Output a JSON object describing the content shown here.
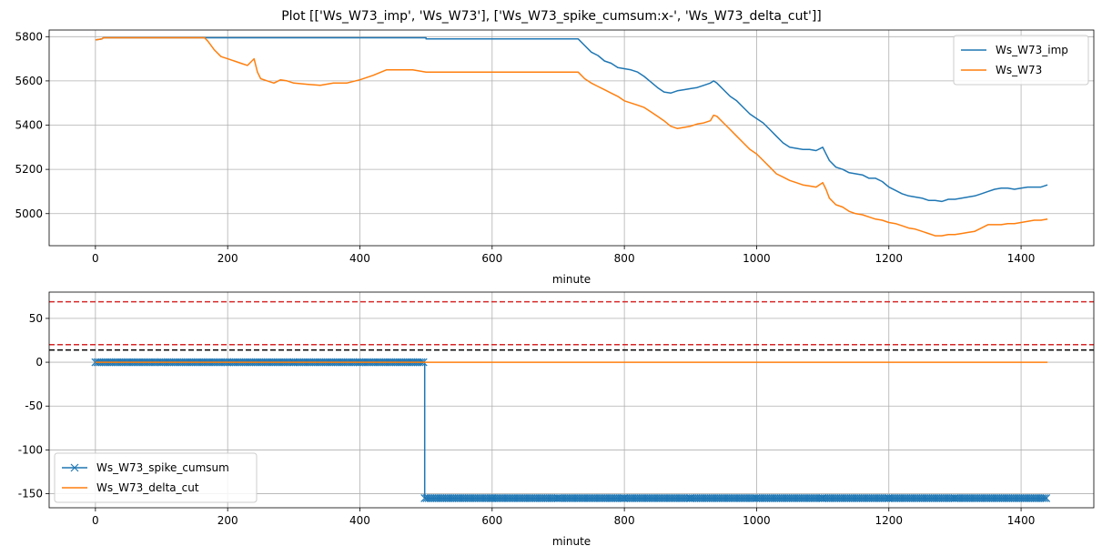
{
  "figure": {
    "title": "Plot [['Ws_W73_imp', 'Ws_W73'], ['Ws_W73_spike_cumsum:x-', 'Ws_W73_delta_cut']]"
  },
  "chart_data": [
    {
      "type": "line",
      "xlabel": "minute",
      "ylabel": "",
      "xlim": [
        -70,
        1510
      ],
      "ylim": [
        4855,
        5830
      ],
      "xticks": [
        0,
        200,
        400,
        600,
        800,
        1000,
        1200,
        1400
      ],
      "yticks": [
        5000,
        5200,
        5400,
        5600,
        5800
      ],
      "grid": true,
      "legend_position": "top-right",
      "series": [
        {
          "name": "Ws_W73_imp",
          "color": "#1f77b4",
          "x": [
            0,
            10,
            12,
            50,
            100,
            165,
            500,
            500,
            575,
            730,
            740,
            750,
            760,
            770,
            780,
            790,
            800,
            810,
            820,
            830,
            840,
            850,
            860,
            870,
            880,
            890,
            900,
            910,
            920,
            930,
            935,
            940,
            950,
            960,
            970,
            980,
            990,
            1000,
            1010,
            1020,
            1030,
            1040,
            1050,
            1060,
            1070,
            1080,
            1090,
            1100,
            1105,
            1110,
            1120,
            1130,
            1140,
            1150,
            1160,
            1170,
            1180,
            1190,
            1200,
            1210,
            1220,
            1230,
            1240,
            1250,
            1260,
            1270,
            1280,
            1290,
            1300,
            1310,
            1320,
            1330,
            1340,
            1350,
            1360,
            1370,
            1380,
            1390,
            1400,
            1410,
            1420,
            1430,
            1440
          ],
          "y": [
            5785,
            5790,
            5795,
            5795,
            5795,
            5795,
            5795,
            5790,
            5790,
            5790,
            5760,
            5730,
            5715,
            5690,
            5680,
            5660,
            5655,
            5650,
            5640,
            5620,
            5595,
            5570,
            5550,
            5545,
            5555,
            5560,
            5565,
            5570,
            5580,
            5590,
            5600,
            5590,
            5560,
            5530,
            5510,
            5480,
            5450,
            5430,
            5410,
            5380,
            5350,
            5320,
            5300,
            5295,
            5290,
            5290,
            5285,
            5300,
            5270,
            5240,
            5210,
            5200,
            5185,
            5180,
            5175,
            5160,
            5160,
            5145,
            5120,
            5105,
            5090,
            5080,
            5075,
            5070,
            5060,
            5060,
            5055,
            5065,
            5065,
            5070,
            5075,
            5080,
            5090,
            5100,
            5110,
            5115,
            5115,
            5110,
            5115,
            5120,
            5120,
            5120,
            5130
          ]
        },
        {
          "name": "Ws_W73",
          "color": "#ff7f0e",
          "x": [
            0,
            10,
            12,
            50,
            100,
            165,
            170,
            180,
            190,
            200,
            210,
            220,
            230,
            240,
            245,
            250,
            260,
            270,
            280,
            290,
            300,
            320,
            340,
            360,
            380,
            400,
            420,
            440,
            460,
            480,
            500,
            510,
            600,
            730,
            740,
            750,
            760,
            770,
            780,
            790,
            800,
            810,
            820,
            830,
            840,
            850,
            860,
            870,
            880,
            890,
            900,
            910,
            920,
            930,
            935,
            940,
            950,
            960,
            970,
            980,
            990,
            1000,
            1010,
            1020,
            1030,
            1040,
            1050,
            1060,
            1070,
            1080,
            1090,
            1100,
            1105,
            1110,
            1120,
            1130,
            1140,
            1150,
            1160,
            1170,
            1180,
            1190,
            1200,
            1210,
            1220,
            1230,
            1240,
            1250,
            1260,
            1270,
            1280,
            1290,
            1300,
            1310,
            1320,
            1330,
            1340,
            1350,
            1360,
            1370,
            1380,
            1390,
            1400,
            1410,
            1420,
            1430,
            1440
          ],
          "y": [
            5785,
            5790,
            5795,
            5795,
            5795,
            5795,
            5780,
            5740,
            5710,
            5700,
            5690,
            5680,
            5670,
            5700,
            5640,
            5610,
            5600,
            5590,
            5605,
            5600,
            5590,
            5585,
            5580,
            5590,
            5590,
            5605,
            5625,
            5650,
            5650,
            5650,
            5640,
            5640,
            5640,
            5640,
            5610,
            5590,
            5575,
            5560,
            5545,
            5530,
            5510,
            5500,
            5490,
            5480,
            5460,
            5440,
            5420,
            5395,
            5385,
            5390,
            5395,
            5405,
            5410,
            5420,
            5445,
            5440,
            5410,
            5380,
            5350,
            5320,
            5290,
            5270,
            5240,
            5210,
            5180,
            5165,
            5150,
            5140,
            5130,
            5125,
            5120,
            5140,
            5110,
            5070,
            5040,
            5030,
            5010,
            5000,
            4995,
            4985,
            4975,
            4970,
            4960,
            4955,
            4945,
            4935,
            4930,
            4920,
            4910,
            4900,
            4900,
            4905,
            4905,
            4910,
            4915,
            4920,
            4935,
            4950,
            4950,
            4950,
            4955,
            4955,
            4960,
            4965,
            4970,
            4970,
            4975
          ]
        }
      ]
    },
    {
      "type": "line",
      "xlabel": "minute",
      "ylabel": "",
      "xlim": [
        -70,
        1510
      ],
      "ylim": [
        -166,
        80
      ],
      "xticks": [
        0,
        200,
        400,
        600,
        800,
        1000,
        1200,
        1400
      ],
      "yticks": [
        50,
        0,
        -50,
        -100,
        -150
      ],
      "grid": true,
      "legend_position": "bottom-left",
      "hlines": [
        {
          "y": 69,
          "color": "#d62728",
          "style": "dashed"
        },
        {
          "y": 20,
          "color": "#d62728",
          "style": "dashed"
        },
        {
          "y": 14,
          "color": "#000000",
          "style": "dashed"
        }
      ],
      "series": [
        {
          "name": "Ws_W73_spike_cumsum",
          "color": "#1f77b4",
          "marker": "x",
          "x": [
            0,
            100,
            200,
            300,
            400,
            498,
            498,
            600,
            700,
            800,
            900,
            1000,
            1100,
            1200,
            1300,
            1440
          ],
          "y": [
            0,
            0,
            0,
            0,
            0,
            0,
            -155,
            -155,
            -155,
            -155,
            -155,
            -155,
            -155,
            -155,
            -155,
            -155
          ]
        },
        {
          "name": "Ws_W73_delta_cut",
          "color": "#ff7f0e",
          "x": [
            0,
            1440
          ],
          "y": [
            0,
            0
          ]
        }
      ]
    }
  ]
}
